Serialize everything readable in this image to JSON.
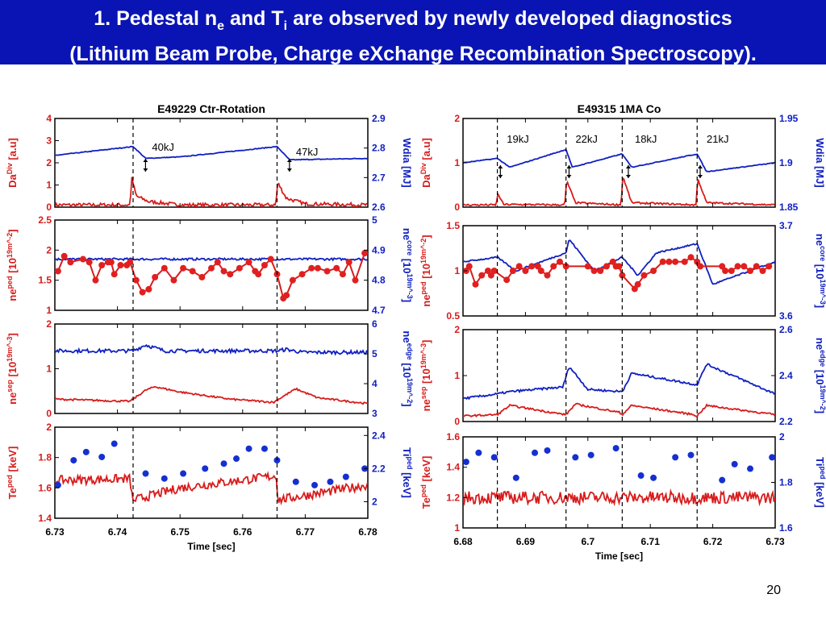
{
  "slide": {
    "title_line1_a": "1. Pedestal n",
    "title_line1_sub1": "e",
    "title_line1_b": " and T",
    "title_line1_sub2": "i",
    "title_line1_c": " are observed by newly developed diagnostics",
    "title_line2": "(Lithium Beam Probe, Charge eXchange Recombination Spectroscopy).",
    "page_number": "20"
  },
  "colors": {
    "red": "#d81c1c",
    "blue": "#1020c0",
    "marker_red": "#e02020",
    "marker_blue": "#1530d0",
    "title_bg": "#0a14b4"
  },
  "chart_data": [
    {
      "type": "line",
      "title": "E49229 Ctr-Rotation",
      "xlabel": "Time [sec]",
      "xlim": [
        6.73,
        6.78
      ],
      "xticks": [
        6.73,
        6.74,
        6.75,
        6.76,
        6.77,
        6.78
      ],
      "vlines": [
        6.7425,
        6.7655
      ],
      "panels": [
        {
          "left_label": "Da^Div [a.u]",
          "right_label": "Wdia [MJ]",
          "left_ylim": [
            0,
            4
          ],
          "left_ticks": [
            0,
            1,
            2,
            3,
            4
          ],
          "right_ylim": [
            2.6,
            2.9
          ],
          "right_ticks": [
            2.6,
            2.7,
            2.8,
            2.9
          ],
          "annotations": [
            {
              "x": 6.745,
              "text": "40kJ"
            },
            {
              "x": 6.768,
              "text": "47kJ"
            }
          ],
          "series": [
            {
              "axis": "left",
              "color": "red",
              "noise": 0.02,
              "x": [
                6.73,
                6.742,
                6.7423,
                6.743,
                6.745,
                6.75,
                6.7653,
                6.7656,
                6.767,
                6.77,
                6.78
              ],
              "y": [
                0.1,
                0.1,
                1.3,
                0.5,
                0.25,
                0.1,
                0.1,
                1.1,
                0.4,
                0.15,
                0.1
              ]
            },
            {
              "axis": "right",
              "color": "blue",
              "noise": 0.004,
              "x": [
                6.73,
                6.7425,
                6.7445,
                6.75,
                6.7655,
                6.7675,
                6.78
              ],
              "y": [
                2.775,
                2.805,
                2.765,
                2.77,
                2.805,
                2.76,
                2.765
              ]
            }
          ]
        },
        {
          "left_label": "ne^ped [10^19m^-2]",
          "right_label": "ne^core [10^19m^-3]",
          "left_ylim": [
            1,
            2.5
          ],
          "left_ticks": [
            1,
            1.5,
            2,
            2.5
          ],
          "right_ylim": [
            4.7,
            5
          ],
          "right_ticks": [
            4.7,
            4.8,
            4.9,
            5
          ],
          "series": [
            {
              "axis": "right",
              "color": "blue",
              "noise": 0.012,
              "x": [
                6.73,
                6.78
              ],
              "y": [
                4.87,
                4.87
              ]
            },
            {
              "axis": "left",
              "color": "red",
              "markers": true,
              "x": [
                6.7305,
                6.7315,
                6.7325,
                6.7345,
                6.7355,
                6.7365,
                6.7375,
                6.7385,
                6.739,
                6.7395,
                6.7405,
                6.7415,
                6.742,
                6.743,
                6.744,
                6.745,
                6.746,
                6.7475,
                6.749,
                6.7505,
                6.752,
                6.7535,
                6.755,
                6.756,
                6.757,
                6.758,
                6.7595,
                6.761,
                6.762,
                6.7625,
                6.7635,
                6.7645,
                6.7655,
                6.7665,
                6.767,
                6.768,
                6.7695,
                6.771,
                6.772,
                6.7735,
                6.775,
                6.776,
                6.777,
                6.778,
                6.7795
              ],
              "y": [
                1.65,
                1.9,
                1.8,
                1.85,
                1.8,
                1.5,
                1.75,
                1.8,
                1.8,
                1.6,
                1.75,
                1.75,
                1.8,
                1.5,
                1.3,
                1.35,
                1.55,
                1.7,
                1.5,
                1.7,
                1.65,
                1.55,
                1.7,
                1.8,
                1.65,
                1.6,
                1.7,
                1.8,
                1.65,
                1.6,
                1.75,
                1.85,
                1.6,
                1.2,
                1.25,
                1.5,
                1.6,
                1.7,
                1.7,
                1.65,
                1.7,
                1.6,
                1.8,
                1.5,
                1.95
              ]
            }
          ]
        },
        {
          "left_label": "ne^sep [10^19m^-3]",
          "right_label": "ne^edge [10^19m^-2]",
          "left_ylim": [
            0,
            2
          ],
          "left_ticks": [
            0,
            1,
            2
          ],
          "right_ylim": [
            3,
            6
          ],
          "right_ticks": [
            3,
            4,
            5,
            6
          ],
          "series": [
            {
              "axis": "right",
              "color": "blue",
              "noise": 0.02,
              "x": [
                6.73,
                6.7425,
                6.7445,
                6.7475,
                6.7655,
                6.767,
                6.7695,
                6.78
              ],
              "y": [
                5.1,
                5.1,
                5.3,
                5.1,
                5.1,
                5.15,
                5.05,
                5.05
              ]
            },
            {
              "axis": "left",
              "color": "red",
              "noise": 0.01,
              "x": [
                6.73,
                6.742,
                6.7445,
                6.746,
                6.75,
                6.758,
                6.765,
                6.7655,
                6.7685,
                6.772,
                6.78
              ],
              "y": [
                0.32,
                0.27,
                0.52,
                0.6,
                0.48,
                0.32,
                0.25,
                0.3,
                0.55,
                0.35,
                0.22
              ]
            }
          ]
        },
        {
          "left_label": "Te^ped [keV]",
          "right_label": "Ti^ped [keV]",
          "left_ylim": [
            1.4,
            2
          ],
          "left_ticks": [
            1.4,
            1.6,
            1.8,
            2
          ],
          "right_ylim": [
            1.9,
            2.45
          ],
          "right_ticks": [
            2,
            2.2,
            2.4
          ],
          "series": [
            {
              "axis": "left",
              "color": "red",
              "noise": 0.05,
              "x": [
                6.73,
                6.742,
                6.7425,
                6.7426,
                6.75,
                6.7655,
                6.7656,
                6.77,
                6.78
              ],
              "y": [
                1.65,
                1.66,
                1.5,
                1.52,
                1.6,
                1.68,
                1.52,
                1.55,
                1.62
              ]
            },
            {
              "axis": "right",
              "color": "blue",
              "markers": true,
              "marker_only": true,
              "x": [
                6.7305,
                6.733,
                6.735,
                6.7375,
                6.7395,
                6.7445,
                6.7475,
                6.7505,
                6.754,
                6.757,
                6.759,
                6.761,
                6.7635,
                6.7655,
                6.7685,
                6.7715,
                6.774,
                6.7765,
                6.7795
              ],
              "y": [
                2.1,
                2.25,
                2.3,
                2.27,
                2.35,
                2.17,
                2.14,
                2.17,
                2.2,
                2.23,
                2.26,
                2.32,
                2.32,
                2.25,
                2.12,
                2.1,
                2.12,
                2.15,
                2.2
              ]
            }
          ]
        }
      ]
    },
    {
      "type": "line",
      "title": "E49315 1MA Co",
      "xlabel": "Time [sec]",
      "xlim": [
        6.68,
        6.73
      ],
      "xticks": [
        6.68,
        6.69,
        6.7,
        6.71,
        6.72,
        6.73
      ],
      "xtick_labels": [
        "6.68",
        "6.69",
        "6.7",
        "6.71",
        "6.72",
        "6.73"
      ],
      "vlines": [
        6.6855,
        6.6965,
        6.7055,
        6.7175
      ],
      "panels": [
        {
          "left_label": "Da^Div [a.u]",
          "right_label": "Wdia [MJ]",
          "left_ylim": [
            0,
            2
          ],
          "left_ticks": [
            0,
            1,
            2
          ],
          "right_ylim": [
            1.85,
            1.95
          ],
          "right_ticks": [
            1.85,
            1.9,
            1.95
          ],
          "annotations": [
            {
              "x": 6.6865,
              "text": "19kJ"
            },
            {
              "x": 6.6975,
              "text": "22kJ"
            },
            {
              "x": 6.707,
              "text": "18kJ"
            },
            {
              "x": 6.7185,
              "text": "21kJ"
            }
          ],
          "series": [
            {
              "axis": "left",
              "color": "red",
              "noise": 0.01,
              "x": [
                6.68,
                6.6853,
                6.6856,
                6.6865,
                6.6963,
                6.6966,
                6.698,
                6.7053,
                6.7056,
                6.707,
                6.7173,
                6.7176,
                6.719,
                6.73
              ],
              "y": [
                0.05,
                0.05,
                0.3,
                0.06,
                0.05,
                0.6,
                0.1,
                0.05,
                0.7,
                0.1,
                0.05,
                0.65,
                0.1,
                0.05
              ]
            },
            {
              "axis": "right",
              "color": "blue",
              "noise": 0.004,
              "x": [
                6.68,
                6.6855,
                6.6875,
                6.6965,
                6.6975,
                6.7055,
                6.707,
                6.7175,
                6.719,
                6.73
              ],
              "y": [
                1.9,
                1.905,
                1.895,
                1.915,
                1.895,
                1.91,
                1.895,
                1.91,
                1.89,
                1.9
              ]
            }
          ]
        },
        {
          "left_label": "ne^ped [10^19m^-2]",
          "right_label": "ne^core [10^19m^-3]",
          "left_ylim": [
            0.5,
            1.5
          ],
          "left_ticks": [
            0.5,
            1,
            1.5
          ],
          "right_ylim": [
            3.6,
            3.7
          ],
          "right_ticks": [
            3.6,
            3.7
          ],
          "series": [
            {
              "axis": "right",
              "color": "blue",
              "noise": 0.008,
              "x": [
                6.68,
                6.6855,
                6.6885,
                6.6965,
                6.697,
                6.701,
                6.7055,
                6.708,
                6.711,
                6.7175,
                6.72,
                6.73
              ],
              "y": [
                3.66,
                3.665,
                3.65,
                3.67,
                3.685,
                3.65,
                3.665,
                3.645,
                3.67,
                3.68,
                3.635,
                3.66
              ]
            },
            {
              "axis": "left",
              "color": "red",
              "markers": true,
              "x": [
                6.6805,
                6.681,
                6.682,
                6.683,
                6.684,
                6.6845,
                6.685,
                6.687,
                6.688,
                6.689,
                6.69,
                6.691,
                6.692,
                6.6925,
                6.6935,
                6.6945,
                6.6955,
                6.6965,
                6.7,
                6.701,
                6.702,
                6.703,
                6.704,
                6.7045,
                6.705,
                6.7055,
                6.7075,
                6.708,
                6.709,
                6.7105,
                6.712,
                6.713,
                6.714,
                6.7155,
                6.7165,
                6.7175,
                6.718,
                6.7215,
                6.722,
                6.723,
                6.724,
                6.725,
                6.726,
                6.727,
                6.728,
                6.729
              ],
              "y": [
                1.0,
                1.05,
                0.85,
                0.95,
                1.0,
                0.95,
                1.0,
                0.9,
                1.0,
                1.05,
                1.0,
                1.05,
                1.05,
                1.0,
                0.95,
                1.05,
                1.1,
                1.05,
                1.05,
                1.0,
                1.0,
                1.05,
                1.1,
                1.05,
                1.05,
                0.95,
                0.8,
                0.85,
                0.95,
                1.0,
                1.1,
                1.1,
                1.1,
                1.1,
                1.15,
                1.1,
                1.05,
                1.05,
                1.0,
                1.0,
                1.05,
                1.05,
                1.0,
                1.05,
                1.0,
                1.05
              ]
            }
          ]
        },
        {
          "left_label": "ne^sep [10^19m^-3]",
          "right_label": "ne^edge [10^19m^-2]",
          "left_ylim": [
            0,
            2
          ],
          "left_ticks": [
            0,
            1,
            2
          ],
          "right_ylim": [
            2.2,
            2.6
          ],
          "right_ticks": [
            2.2,
            2.4,
            2.6
          ],
          "series": [
            {
              "axis": "right",
              "color": "blue",
              "noise": 0.012,
              "x": [
                6.68,
                6.6855,
                6.6875,
                6.696,
                6.697,
                6.7,
                6.7055,
                6.707,
                6.7175,
                6.719,
                6.73
              ],
              "y": [
                2.3,
                2.32,
                2.33,
                2.35,
                2.44,
                2.34,
                2.33,
                2.41,
                2.36,
                2.45,
                2.32
              ]
            },
            {
              "axis": "left",
              "color": "red",
              "noise": 0.01,
              "x": [
                6.68,
                6.6855,
                6.6875,
                6.695,
                6.6965,
                6.698,
                6.705,
                6.7055,
                6.707,
                6.717,
                6.7175,
                6.719,
                6.73
              ],
              "y": [
                0.12,
                0.15,
                0.35,
                0.18,
                0.15,
                0.38,
                0.2,
                0.15,
                0.35,
                0.15,
                0.12,
                0.35,
                0.15
              ]
            }
          ]
        },
        {
          "left_label": "Te^ped [keV]",
          "right_label": "Ti^ped [keV]",
          "left_ylim": [
            1,
            1.6
          ],
          "left_ticks": [
            1,
            1.2,
            1.4,
            1.6
          ],
          "right_ylim": [
            1.6,
            2
          ],
          "right_ticks": [
            1.6,
            1.8,
            2
          ],
          "series": [
            {
              "axis": "left",
              "color": "red",
              "noise": 0.07,
              "x": [
                6.68,
                6.73
              ],
              "y": [
                1.2,
                1.2
              ]
            },
            {
              "axis": "right",
              "color": "blue",
              "markers": true,
              "marker_only": true,
              "x": [
                6.6805,
                6.6825,
                6.685,
                6.6885,
                6.6915,
                6.6935,
                6.698,
                6.7005,
                6.7045,
                6.7085,
                6.7105,
                6.714,
                6.7165,
                6.7215,
                6.7235,
                6.726,
                6.7295
              ],
              "y": [
                1.89,
                1.93,
                1.91,
                1.82,
                1.93,
                1.94,
                1.91,
                1.92,
                1.95,
                1.83,
                1.82,
                1.91,
                1.92,
                1.81,
                1.88,
                1.86,
                1.91
              ]
            }
          ]
        }
      ]
    }
  ]
}
